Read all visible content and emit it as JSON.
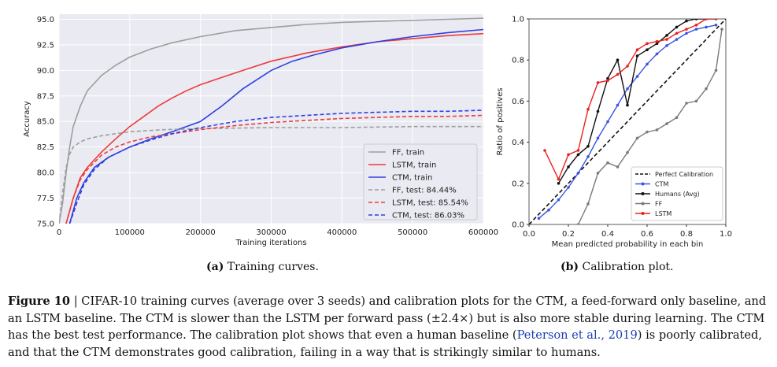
{
  "panel_a": {
    "caption_label": "(a)",
    "caption_text": "Training curves.",
    "chart_data": {
      "type": "line",
      "xlabel": "Training iterations",
      "ylabel": "Accuracy",
      "xlim": [
        0,
        600000
      ],
      "ylim": [
        75.0,
        95.5
      ],
      "xticks": [
        0,
        100000,
        200000,
        300000,
        400000,
        500000,
        600000
      ],
      "xtick_labels": [
        "0",
        "100000",
        "200000",
        "300000",
        "400000",
        "500000",
        "600000"
      ],
      "yticks": [
        75.0,
        77.5,
        80.0,
        82.5,
        85.0,
        87.5,
        90.0,
        92.5,
        95.0
      ],
      "ytick_labels": [
        "75.0",
        "77.5",
        "80.0",
        "82.5",
        "85.0",
        "87.5",
        "90.0",
        "92.5",
        "95.0"
      ],
      "grid": true,
      "legend_position": "bottom-right",
      "series": [
        {
          "name": "FF, train",
          "color": "#9e9e9e",
          "dash": "solid",
          "x": [
            0,
            5000,
            10000,
            15000,
            20000,
            30000,
            40000,
            60000,
            80000,
            100000,
            130000,
            160000,
            200000,
            250000,
            300000,
            350000,
            400000,
            450000,
            500000,
            550000,
            600000
          ],
          "y": [
            75.0,
            77.0,
            80.0,
            82.5,
            84.5,
            86.5,
            88.0,
            89.5,
            90.5,
            91.3,
            92.1,
            92.7,
            93.3,
            93.9,
            94.2,
            94.5,
            94.7,
            94.8,
            94.9,
            95.0,
            95.1
          ]
        },
        {
          "name": "LSTM, train",
          "color": "#ee3b3b",
          "dash": "solid",
          "x": [
            10000,
            20000,
            30000,
            40000,
            60000,
            80000,
            100000,
            120000,
            140000,
            160000,
            180000,
            200000,
            230000,
            260000,
            300000,
            350000,
            400000,
            450000,
            500000,
            550000,
            600000
          ],
          "y": [
            75.0,
            77.5,
            79.5,
            80.5,
            82.0,
            83.3,
            84.5,
            85.5,
            86.5,
            87.3,
            88.0,
            88.6,
            89.3,
            90.0,
            90.9,
            91.7,
            92.3,
            92.8,
            93.1,
            93.4,
            93.6
          ]
        },
        {
          "name": "CTM, train",
          "color": "#2e3fe0",
          "dash": "solid",
          "x": [
            15000,
            25000,
            35000,
            50000,
            70000,
            100000,
            130000,
            160000,
            200000,
            230000,
            260000,
            300000,
            330000,
            360000,
            400000,
            450000,
            500000,
            550000,
            600000
          ],
          "y": [
            75.0,
            77.5,
            79.0,
            80.5,
            81.5,
            82.5,
            83.3,
            84.0,
            85.0,
            86.5,
            88.2,
            90.0,
            90.9,
            91.5,
            92.2,
            92.8,
            93.3,
            93.7,
            94.0
          ]
        },
        {
          "name": "FF, test: 84.44%",
          "color": "#9e9e9e",
          "dash": "dashed",
          "x": [
            0,
            5000,
            10000,
            15000,
            20000,
            30000,
            40000,
            60000,
            80000,
            100000,
            150000,
            200000,
            300000,
            400000,
            500000,
            600000
          ],
          "y": [
            75.0,
            78.0,
            80.5,
            81.8,
            82.5,
            83.0,
            83.3,
            83.6,
            83.8,
            84.0,
            84.2,
            84.3,
            84.4,
            84.4,
            84.5,
            84.5
          ]
        },
        {
          "name": "LSTM, test: 85.54%",
          "color": "#ee3b3b",
          "dash": "dashed",
          "x": [
            10000,
            20000,
            30000,
            40000,
            60000,
            80000,
            100000,
            130000,
            160000,
            200000,
            250000,
            300000,
            350000,
            400000,
            450000,
            500000,
            550000,
            600000
          ],
          "y": [
            75.0,
            77.5,
            79.3,
            80.3,
            81.7,
            82.5,
            83.0,
            83.5,
            83.8,
            84.2,
            84.6,
            84.9,
            85.1,
            85.3,
            85.4,
            85.5,
            85.5,
            85.6
          ]
        },
        {
          "name": "CTM, test: 86.03%",
          "color": "#2e3fe0",
          "dash": "dashed",
          "x": [
            15000,
            25000,
            35000,
            50000,
            70000,
            100000,
            130000,
            160000,
            200000,
            250000,
            300000,
            350000,
            400000,
            450000,
            500000,
            550000,
            600000
          ],
          "y": [
            75.0,
            77.0,
            78.8,
            80.3,
            81.5,
            82.5,
            83.2,
            83.8,
            84.4,
            85.0,
            85.4,
            85.6,
            85.8,
            85.9,
            86.0,
            86.0,
            86.1
          ]
        }
      ]
    }
  },
  "panel_b": {
    "caption_label": "(b)",
    "caption_text": "Calibration plot.",
    "chart_data": {
      "type": "line",
      "xlabel": "Mean predicted probability in each bin",
      "ylabel": "Ratio of positives",
      "xlim": [
        0.0,
        1.0
      ],
      "ylim": [
        0.0,
        1.0
      ],
      "xticks": [
        0.0,
        0.2,
        0.4,
        0.6,
        0.8,
        1.0
      ],
      "xtick_labels": [
        "0.0",
        "0.2",
        "0.4",
        "0.6",
        "0.8",
        "1.0"
      ],
      "yticks": [
        0.0,
        0.2,
        0.4,
        0.6,
        0.8,
        1.0
      ],
      "ytick_labels": [
        "0.0",
        "0.2",
        "0.4",
        "0.6",
        "0.8",
        "1.0"
      ],
      "grid": false,
      "legend_position": "bottom-right",
      "series": [
        {
          "name": "Perfect Calibration",
          "color": "#111111",
          "dash": "dashed",
          "marker": "none",
          "x": [
            0.0,
            1.0
          ],
          "y": [
            0.0,
            1.0
          ]
        },
        {
          "name": "CTM",
          "color": "#3a55e0",
          "dash": "solid",
          "marker": "circle",
          "x": [
            0.05,
            0.1,
            0.15,
            0.2,
            0.25,
            0.3,
            0.35,
            0.4,
            0.45,
            0.5,
            0.55,
            0.6,
            0.65,
            0.7,
            0.75,
            0.8,
            0.85,
            0.9,
            0.95
          ],
          "y": [
            0.03,
            0.07,
            0.12,
            0.18,
            0.25,
            0.33,
            0.42,
            0.5,
            0.58,
            0.66,
            0.72,
            0.78,
            0.83,
            0.87,
            0.9,
            0.93,
            0.95,
            0.96,
            0.97
          ]
        },
        {
          "name": "Humans (Avg)",
          "color": "#111111",
          "dash": "solid",
          "marker": "circle",
          "x": [
            0.15,
            0.2,
            0.25,
            0.3,
            0.35,
            0.4,
            0.45,
            0.5,
            0.55,
            0.6,
            0.65,
            0.7,
            0.75,
            0.8,
            0.85,
            0.9,
            0.95
          ],
          "y": [
            0.2,
            0.28,
            0.34,
            0.38,
            0.55,
            0.71,
            0.8,
            0.58,
            0.82,
            0.85,
            0.88,
            0.92,
            0.96,
            0.99,
            1.0,
            1.0,
            1.0
          ]
        },
        {
          "name": "FF",
          "color": "#7a7a7a",
          "dash": "solid",
          "marker": "circle",
          "x": [
            0.25,
            0.3,
            0.35,
            0.4,
            0.45,
            0.5,
            0.55,
            0.6,
            0.65,
            0.7,
            0.75,
            0.8,
            0.85,
            0.9,
            0.95,
            0.98
          ],
          "y": [
            0.0,
            0.1,
            0.25,
            0.3,
            0.28,
            0.35,
            0.42,
            0.45,
            0.46,
            0.49,
            0.52,
            0.59,
            0.6,
            0.66,
            0.75,
            0.95
          ]
        },
        {
          "name": "LSTM",
          "color": "#e8221e",
          "dash": "solid",
          "marker": "circle",
          "x": [
            0.08,
            0.15,
            0.2,
            0.25,
            0.3,
            0.35,
            0.4,
            0.45,
            0.5,
            0.55,
            0.6,
            0.65,
            0.7,
            0.75,
            0.8,
            0.85,
            0.9,
            0.95
          ],
          "y": [
            0.36,
            0.22,
            0.34,
            0.36,
            0.56,
            0.69,
            0.7,
            0.73,
            0.77,
            0.85,
            0.88,
            0.89,
            0.9,
            0.93,
            0.95,
            0.97,
            1.0,
            1.0
          ]
        }
      ]
    }
  },
  "caption": {
    "lead": "Figure 10",
    "sep": " | ",
    "part1": "CIFAR-10 training curves (average over 3 seeds) and calibration plots for the CTM, a feed-forward only baseline, and an LSTM baseline. The CTM is slower than the LSTM per forward pass (±2.4×) but is also more stable during learning. The CTM has the best test performance. The calibration plot shows that even a human baseline (",
    "citation": "Peterson et al., 2019",
    "part2": ") is poorly calibrated, and that the CTM demonstrates good calibration, failing in a way that is strikingly similar to humans."
  }
}
